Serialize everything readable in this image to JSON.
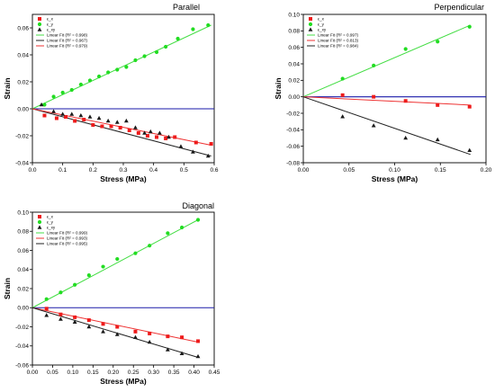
{
  "colors": {
    "red": "#ee1b1b",
    "green": "#22dd22",
    "black": "#1a1a1a",
    "fit_green": "#44dd44",
    "fit_red": "#ee3333",
    "fit_black": "#222222",
    "zero": "#1a1aa8"
  },
  "chart_data": [
    {
      "type": "scatter",
      "title": "Parallel",
      "xlabel": "Stress (MPa)",
      "ylabel": "Strain",
      "xlim": [
        0,
        0.6
      ],
      "ylim": [
        -0.04,
        0.07
      ],
      "xticks": [
        "0.0",
        "0.1",
        "0.2",
        "0.3",
        "0.4",
        "0.5",
        "0.6"
      ],
      "yticks": [
        "-0.04",
        "-0.02",
        "0.00",
        "0.02",
        "0.04",
        "0.06"
      ],
      "legend": [
        "ε_x",
        "ε_y",
        "ε_xy",
        "Linear Fit (R² = 0.998)",
        "Linear Fit (R² = 0.967)",
        "Linear Fit (R² = 0.979)"
      ],
      "series": [
        {
          "name": "ε_x",
          "marker": "square",
          "color": "red",
          "x": [
            0.04,
            0.08,
            0.11,
            0.14,
            0.17,
            0.2,
            0.23,
            0.26,
            0.29,
            0.32,
            0.35,
            0.38,
            0.41,
            0.44,
            0.47,
            0.54,
            0.59
          ],
          "y": [
            -0.005,
            -0.007,
            -0.006,
            -0.009,
            -0.008,
            -0.012,
            -0.013,
            -0.013,
            -0.014,
            -0.016,
            -0.018,
            -0.02,
            -0.021,
            -0.022,
            -0.021,
            -0.025,
            -0.026
          ]
        },
        {
          "name": "ε_y",
          "marker": "circle",
          "color": "green",
          "x": [
            0.04,
            0.07,
            0.1,
            0.13,
            0.16,
            0.19,
            0.22,
            0.25,
            0.28,
            0.31,
            0.34,
            0.37,
            0.41,
            0.44,
            0.48,
            0.53,
            0.58
          ],
          "y": [
            0.003,
            0.009,
            0.012,
            0.014,
            0.018,
            0.021,
            0.024,
            0.027,
            0.029,
            0.031,
            0.036,
            0.039,
            0.042,
            0.046,
            0.052,
            0.059,
            0.062
          ]
        },
        {
          "name": "ε_xy",
          "marker": "triangle",
          "color": "black",
          "x": [
            0.03,
            0.07,
            0.1,
            0.13,
            0.16,
            0.19,
            0.22,
            0.25,
            0.28,
            0.31,
            0.34,
            0.37,
            0.39,
            0.42,
            0.45,
            0.49,
            0.53,
            0.58
          ],
          "y": [
            0.003,
            -0.002,
            -0.004,
            -0.004,
            -0.005,
            -0.006,
            -0.007,
            -0.009,
            -0.01,
            -0.009,
            -0.014,
            -0.018,
            -0.017,
            -0.018,
            -0.021,
            -0.028,
            -0.032,
            -0.035
          ]
        }
      ],
      "fits": [
        {
          "color": "fit_green",
          "x": [
            0.0,
            0.59
          ],
          "y": [
            0.0,
            0.062
          ]
        },
        {
          "color": "fit_black",
          "x": [
            0.0,
            0.59
          ],
          "y": [
            0.0,
            -0.035
          ]
        },
        {
          "color": "fit_red",
          "x": [
            0.0,
            0.59
          ],
          "y": [
            0.0,
            -0.027
          ]
        }
      ]
    },
    {
      "type": "scatter",
      "title": "Perpendicular",
      "xlabel": "Stress (MPa)",
      "ylabel": "Strain",
      "xlim": [
        0,
        0.2
      ],
      "ylim": [
        -0.08,
        0.1
      ],
      "xticks": [
        "0.00",
        "0.05",
        "0.10",
        "0.15",
        "0.20"
      ],
      "yticks": [
        "-0.08",
        "-0.06",
        "-0.04",
        "-0.02",
        "0.00",
        "0.02",
        "0.04",
        "0.06",
        "0.08",
        "0.10"
      ],
      "legend": [
        "ε_x",
        "ε_y",
        "ε_xy",
        "Linear Fit (R² = 0.997)",
        "Linear Fit (R² = 0.813)",
        "Linear Fit (R² = 0.984)"
      ],
      "series": [
        {
          "name": "ε_x",
          "marker": "square",
          "color": "red",
          "x": [
            0.043,
            0.077,
            0.112,
            0.147,
            0.182
          ],
          "y": [
            0.002,
            0.0,
            -0.005,
            -0.01,
            -0.012
          ]
        },
        {
          "name": "ε_y",
          "marker": "circle",
          "color": "green",
          "x": [
            0.043,
            0.077,
            0.112,
            0.147,
            0.182
          ],
          "y": [
            0.022,
            0.038,
            0.058,
            0.067,
            0.085
          ]
        },
        {
          "name": "ε_xy",
          "marker": "triangle",
          "color": "black",
          "x": [
            0.043,
            0.077,
            0.112,
            0.147,
            0.182
          ],
          "y": [
            -0.024,
            -0.035,
            -0.05,
            -0.052,
            -0.065
          ]
        }
      ],
      "fits": [
        {
          "color": "fit_green",
          "x": [
            0.0,
            0.183
          ],
          "y": [
            0.0,
            0.087
          ]
        },
        {
          "color": "fit_red",
          "x": [
            0.0,
            0.183
          ],
          "y": [
            0.0,
            -0.01
          ]
        },
        {
          "color": "fit_black",
          "x": [
            0.0,
            0.183
          ],
          "y": [
            0.0,
            -0.07
          ]
        }
      ]
    },
    {
      "type": "scatter",
      "title": "Diagonal",
      "xlabel": "Stress (MPa)",
      "ylabel": "Strain",
      "xlim": [
        0,
        0.45
      ],
      "ylim": [
        -0.06,
        0.1
      ],
      "xticks": [
        "0.00",
        "0.05",
        "0.10",
        "0.15",
        "0.20",
        "0.25",
        "0.30",
        "0.35",
        "0.40",
        "0.45"
      ],
      "yticks": [
        "-0.06",
        "-0.04",
        "-0.02",
        "0.00",
        "0.02",
        "0.04",
        "0.06",
        "0.08",
        "0.10"
      ],
      "legend": [
        "ε_x",
        "ε_y",
        "ε_xy",
        "Linear Fit (R² = 0.999)",
        "Linear Fit (R² = 0.993)",
        "Linear Fit (R² = 0.995)"
      ],
      "series": [
        {
          "name": "ε_x",
          "marker": "square",
          "color": "red",
          "x": [
            0.035,
            0.07,
            0.105,
            0.14,
            0.175,
            0.21,
            0.255,
            0.29,
            0.335,
            0.37,
            0.41
          ],
          "y": [
            -0.001,
            -0.007,
            -0.01,
            -0.013,
            -0.017,
            -0.02,
            -0.025,
            -0.027,
            -0.03,
            -0.031,
            -0.035
          ]
        },
        {
          "name": "ε_y",
          "marker": "circle",
          "color": "green",
          "x": [
            0.035,
            0.07,
            0.105,
            0.14,
            0.175,
            0.21,
            0.255,
            0.29,
            0.335,
            0.37,
            0.41
          ],
          "y": [
            0.009,
            0.016,
            0.024,
            0.034,
            0.043,
            0.051,
            0.057,
            0.065,
            0.078,
            0.084,
            0.092
          ]
        },
        {
          "name": "ε_xy",
          "marker": "triangle",
          "color": "black",
          "x": [
            0.035,
            0.07,
            0.105,
            0.14,
            0.175,
            0.21,
            0.255,
            0.29,
            0.335,
            0.37,
            0.41
          ],
          "y": [
            -0.008,
            -0.012,
            -0.015,
            -0.02,
            -0.025,
            -0.028,
            -0.031,
            -0.036,
            -0.044,
            -0.048,
            -0.051
          ]
        }
      ],
      "fits": [
        {
          "color": "fit_green",
          "x": [
            0.0,
            0.41
          ],
          "y": [
            0.0,
            0.092
          ]
        },
        {
          "color": "fit_red",
          "x": [
            0.0,
            0.41
          ],
          "y": [
            0.0,
            -0.036
          ]
        },
        {
          "color": "fit_black",
          "x": [
            0.0,
            0.41
          ],
          "y": [
            0.0,
            -0.052
          ]
        }
      ]
    }
  ]
}
